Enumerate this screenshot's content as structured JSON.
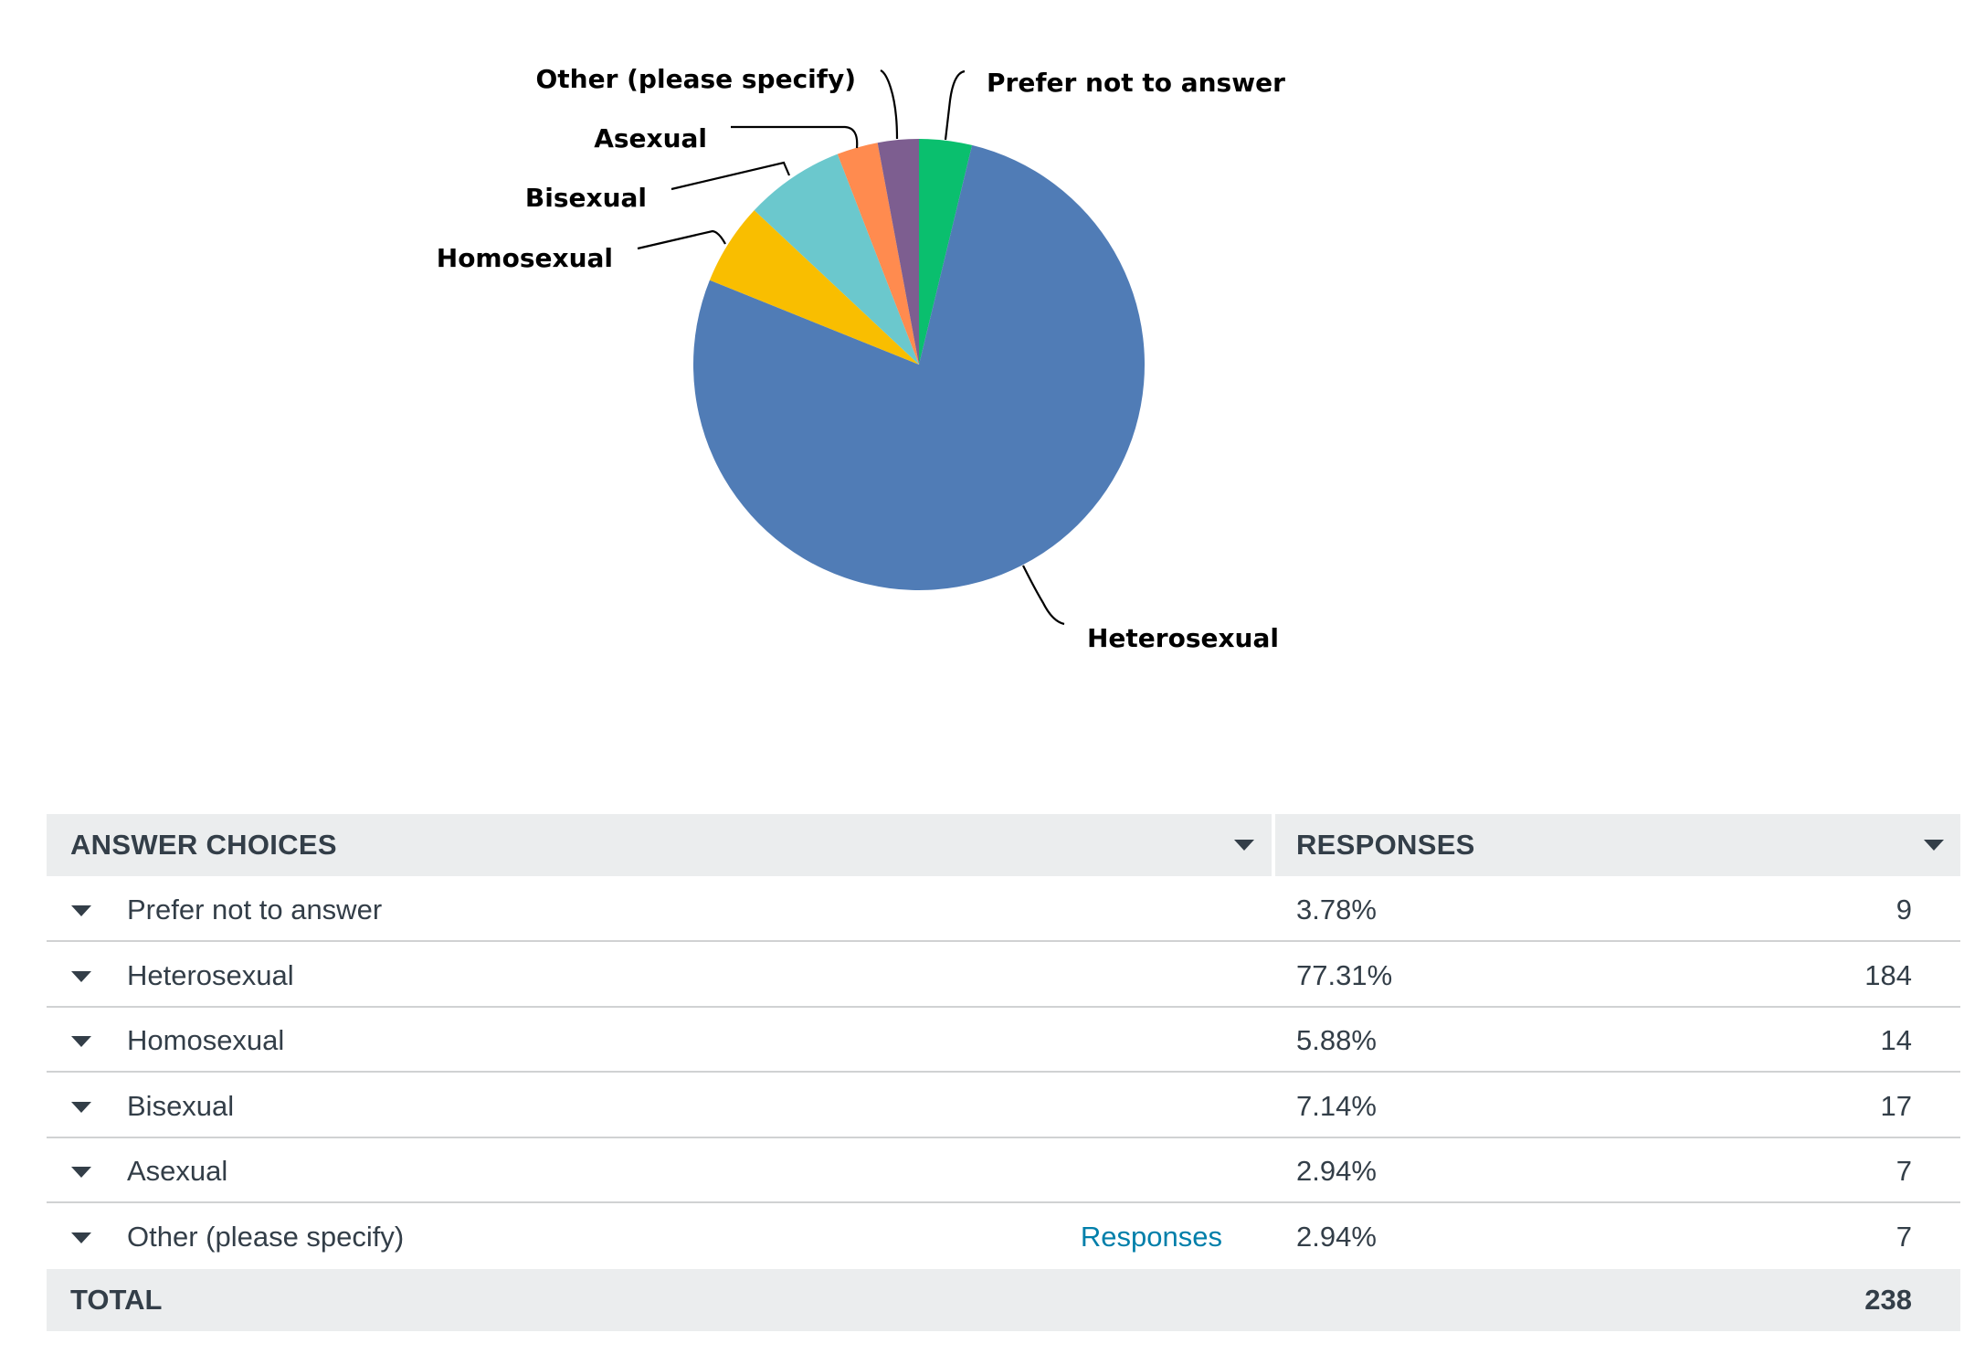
{
  "chart_data": {
    "type": "pie",
    "title": "",
    "labels": [
      "Prefer not to answer",
      "Heterosexual",
      "Homosexual",
      "Bisexual",
      "Asexual",
      "Other (please specify)"
    ],
    "values": [
      3.78,
      77.31,
      5.88,
      7.14,
      2.94,
      2.94
    ],
    "counts": [
      9,
      184,
      14,
      17,
      7,
      7
    ],
    "colors": [
      "#0abf6e",
      "#507cb6",
      "#f9be00",
      "#6bc8cd",
      "#ff8b4f",
      "#7d5e90"
    ],
    "legend": "none"
  },
  "table": {
    "headers": {
      "choices": "ANSWER CHOICES",
      "responses": "RESPONSES"
    },
    "rows": [
      {
        "label": "Prefer not to answer",
        "percent": "3.78%",
        "count": "9",
        "link": ""
      },
      {
        "label": "Heterosexual",
        "percent": "77.31%",
        "count": "184",
        "link": ""
      },
      {
        "label": "Homosexual",
        "percent": "5.88%",
        "count": "14",
        "link": ""
      },
      {
        "label": "Bisexual",
        "percent": "7.14%",
        "count": "17",
        "link": ""
      },
      {
        "label": "Asexual",
        "percent": "2.94%",
        "count": "7",
        "link": ""
      },
      {
        "label": "Other (please specify)",
        "percent": "2.94%",
        "count": "7",
        "link": "Responses"
      }
    ],
    "total": {
      "label": "TOTAL",
      "count": "238"
    }
  }
}
